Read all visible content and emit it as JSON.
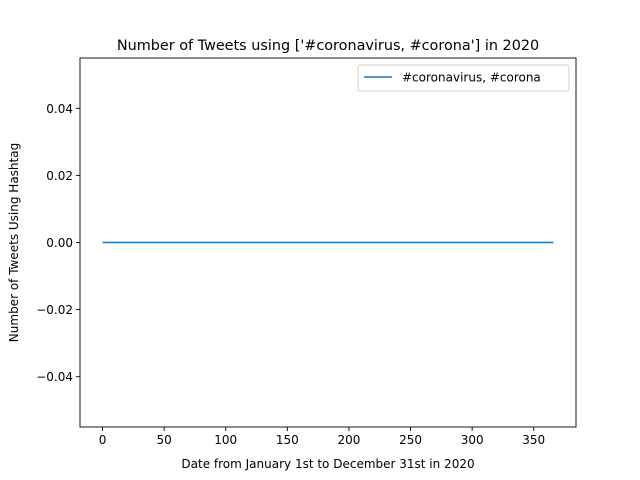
{
  "chart_data": {
    "type": "line",
    "title": "Number of Tweets using ['#coronavirus, #corona'] in 2020",
    "xlabel": "Date from January 1st to December 31st in 2020",
    "ylabel": "Number of Tweets Using Hashtag",
    "xlim": [
      -18.3,
      384.3
    ],
    "ylim": [
      -0.055,
      0.055
    ],
    "xticks": [
      0,
      50,
      100,
      150,
      200,
      250,
      300,
      350
    ],
    "xtick_labels": [
      "0",
      "50",
      "100",
      "150",
      "200",
      "250",
      "300",
      "350"
    ],
    "yticks": [
      -0.04,
      -0.02,
      0.0,
      0.02,
      0.04
    ],
    "ytick_labels": [
      "−0.04",
      "−0.02",
      "0.00",
      "0.02",
      "0.04"
    ],
    "grid": false,
    "legend_position": "upper right",
    "series": [
      {
        "name": "#coronavirus, #corona",
        "color": "#1f77b4",
        "x": [
          0,
          366
        ],
        "y": [
          0,
          0
        ]
      }
    ]
  }
}
